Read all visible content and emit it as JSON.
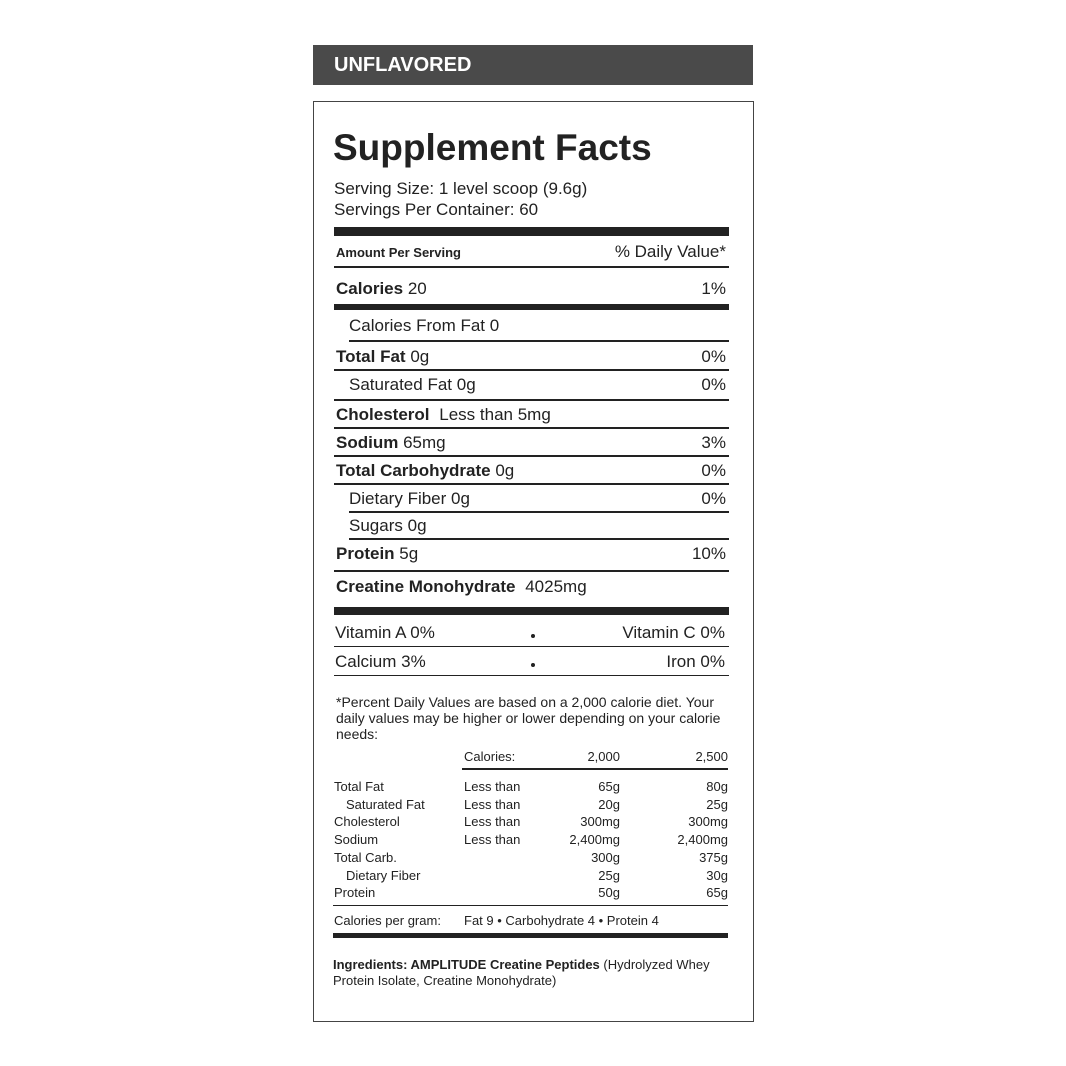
{
  "header": "UNFLAVORED",
  "title": "Supplement Facts",
  "serving_size": "Serving Size: 1 level scoop (9.6g)",
  "servings_per_container": "Servings Per Container: 60",
  "amount_per_serving": "Amount Per Serving",
  "daily_value_header": "% Daily Value*",
  "nutrients": [
    {
      "name": "Calories",
      "amount": "20",
      "dv": "1%"
    },
    {
      "name": "Calories From Fat",
      "amount": "0"
    },
    {
      "name": "Total Fat",
      "amount": "0g",
      "dv": "0%"
    },
    {
      "name": "Saturated Fat",
      "amount": "0g",
      "dv": "0%"
    },
    {
      "name": "Cholesterol",
      "amount": "Less than 5mg"
    },
    {
      "name": "Sodium",
      "amount": "65mg",
      "dv": "3%"
    },
    {
      "name": "Total Carbohydrate",
      "amount": "0g",
      "dv": "0%"
    },
    {
      "name": "Dietary Fiber",
      "amount": "0g",
      "dv": "0%"
    },
    {
      "name": "Sugars",
      "amount": "0g"
    },
    {
      "name": "Protein",
      "amount": "5g",
      "dv": "10%"
    },
    {
      "name": "Creatine Monohydrate",
      "amount": "4025mg"
    }
  ],
  "vitamins": [
    {
      "left": "Vitamin A 0%",
      "right": "Vitamin C 0%"
    },
    {
      "left": "Calcium 3%",
      "right": "Iron 0%"
    }
  ],
  "footnote": "*Percent Daily Values are based on a 2,000 calorie diet. Your daily values may be higher or lower depending on your calorie needs:",
  "daily_table": {
    "header": {
      "label": "Calories:",
      "a": "2,000",
      "b": "2,500"
    },
    "rows": [
      {
        "name": "Total Fat",
        "limit": "Less than",
        "a": "65g",
        "b": "80g"
      },
      {
        "name": "Saturated Fat",
        "limit": "Less than",
        "a": "20g",
        "b": "25g"
      },
      {
        "name": "Cholesterol",
        "limit": "Less than",
        "a": "300mg",
        "b": "300mg"
      },
      {
        "name": "Sodium",
        "limit": "Less than",
        "a": "2,400mg",
        "b": "2,400mg"
      },
      {
        "name": "Total Carb.",
        "a": "300g",
        "b": "375g"
      },
      {
        "name": "Dietary Fiber",
        "a": "25g",
        "b": "30g"
      },
      {
        "name": "Protein",
        "a": "50g",
        "b": "65g"
      }
    ]
  },
  "calories_per_gram": {
    "label": "Calories per gram:",
    "text": "Fat 9 • Carbohydrate 4 • Protein 4"
  },
  "ingredients": {
    "bold": "Ingredients: AMPLITUDE Creatine Peptides",
    "rest": "(Hydrolyzed Whey Protein Isolate, Creatine Monohydrate)"
  }
}
